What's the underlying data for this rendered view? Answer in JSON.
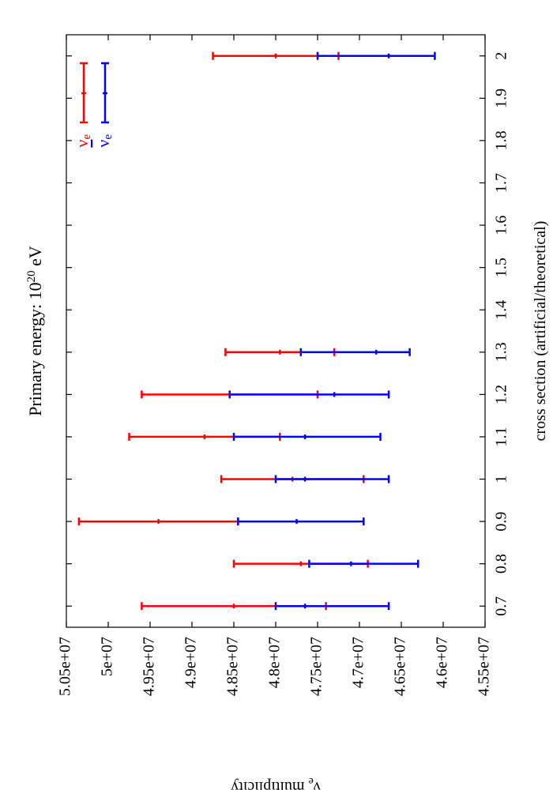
{
  "chart_data": {
    "type": "errorbar",
    "orientation": "rotated-90-ccw",
    "title_prefix": "Primary energy: 10",
    "title_exp": "20",
    "title_suffix": " eV",
    "xlabel": "cross section (artificial/theoretical)",
    "ylabel_main": "ν",
    "ylabel_sub": "e",
    "ylabel_rest": " multiplicity",
    "xlim": [
      0.65,
      2.05
    ],
    "ylim": [
      45500000,
      50500000
    ],
    "x_ticks": [
      0.7,
      0.8,
      0.9,
      1,
      1.1,
      1.2,
      1.3,
      1.4,
      1.5,
      1.6,
      1.7,
      1.8,
      1.9,
      2
    ],
    "x_tick_labels": [
      "0.7",
      "0.8",
      "0.9",
      "1",
      "1.1",
      "1.2",
      "1.3",
      "1.4",
      "1.5",
      "1.6",
      "1.7",
      "1.8",
      "1.9",
      "2"
    ],
    "y_ticks": [
      50500000,
      50000000,
      49500000,
      49000000,
      48500000,
      48000000,
      47500000,
      47000000,
      46500000,
      46000000,
      45500000
    ],
    "y_tick_labels": [
      "5.05e+07",
      "5e+07",
      "4.95e+07",
      "4.9e+07",
      "4.85e+07",
      "4.8e+07",
      "4.75e+07",
      "4.7e+07",
      "4.65e+07",
      "4.6e+07",
      "4.55e+07"
    ],
    "legend_placement": "top-right",
    "series": [
      {
        "name": "ν_e",
        "legend_main": "ν",
        "legend_sub": "e",
        "bar": false,
        "color": "#ff0000",
        "points": [
          {
            "x": 0.7,
            "y": 48500000,
            "lo": 47400000,
            "hi": 49600000
          },
          {
            "x": 0.8,
            "y": 47700000,
            "lo": 46900000,
            "hi": 48500000
          },
          {
            "x": 0.9,
            "y": 49400000,
            "lo": 48450000,
            "hi": 50350000
          },
          {
            "x": 1.0,
            "y": 47800000,
            "lo": 46950000,
            "hi": 48650000
          },
          {
            "x": 1.1,
            "y": 48850000,
            "lo": 47950000,
            "hi": 49750000
          },
          {
            "x": 1.2,
            "y": 48550000,
            "lo": 47500000,
            "hi": 49600000
          },
          {
            "x": 1.3,
            "y": 47950000,
            "lo": 47300000,
            "hi": 48600000
          },
          {
            "x": 2.0,
            "y": 48000000,
            "lo": 47250000,
            "hi": 48750000
          }
        ]
      },
      {
        "name": "ν̄_e",
        "legend_main": "ν",
        "legend_sub": "e",
        "bar": true,
        "color": "#0000ff",
        "points": [
          {
            "x": 0.7,
            "y": 47650000,
            "lo": 46650000,
            "hi": 48000000
          },
          {
            "x": 0.8,
            "y": 47100000,
            "lo": 46300000,
            "hi": 47600000
          },
          {
            "x": 0.9,
            "y": 47750000,
            "lo": 46950000,
            "hi": 48450000
          },
          {
            "x": 1.0,
            "y": 47650000,
            "lo": 46650000,
            "hi": 48000000
          },
          {
            "x": 1.1,
            "y": 47650000,
            "lo": 46750000,
            "hi": 48500000
          },
          {
            "x": 1.2,
            "y": 47300000,
            "lo": 46650000,
            "hi": 48550000
          },
          {
            "x": 1.3,
            "y": 46800000,
            "lo": 46400000,
            "hi": 47700000
          },
          {
            "x": 2.0,
            "y": 46650000,
            "lo": 46100000,
            "hi": 47500000
          }
        ]
      }
    ]
  }
}
